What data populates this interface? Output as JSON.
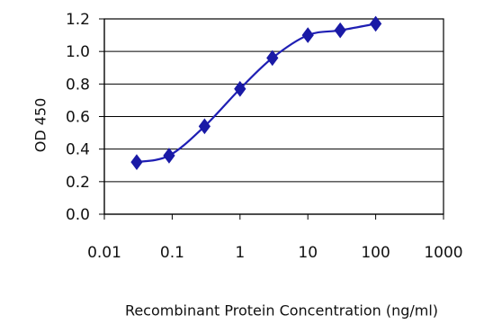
{
  "chart_data": {
    "type": "line",
    "x_scale": "log",
    "ylabel": "OD 450",
    "xlabel": "Recombinant Protein Concentration (ng/ml)",
    "xlim": [
      0.01,
      1000
    ],
    "ylim": [
      0.0,
      1.2
    ],
    "x_ticks": [
      "0.01",
      "0.1",
      "1",
      "10",
      "100",
      "1000"
    ],
    "y_ticks": [
      "0.0",
      "0.2",
      "0.4",
      "0.6",
      "0.8",
      "1.0",
      "1.2"
    ],
    "grid": true,
    "legend": "none",
    "series": [
      {
        "x": [
          0.03,
          0.09,
          0.3,
          1,
          3,
          10,
          30,
          100
        ],
        "y": [
          0.32,
          0.36,
          0.54,
          0.77,
          0.96,
          1.1,
          1.13,
          1.17
        ]
      }
    ],
    "colors": {
      "series": "#1f1fb4",
      "marker": "#1a1aa6"
    }
  }
}
